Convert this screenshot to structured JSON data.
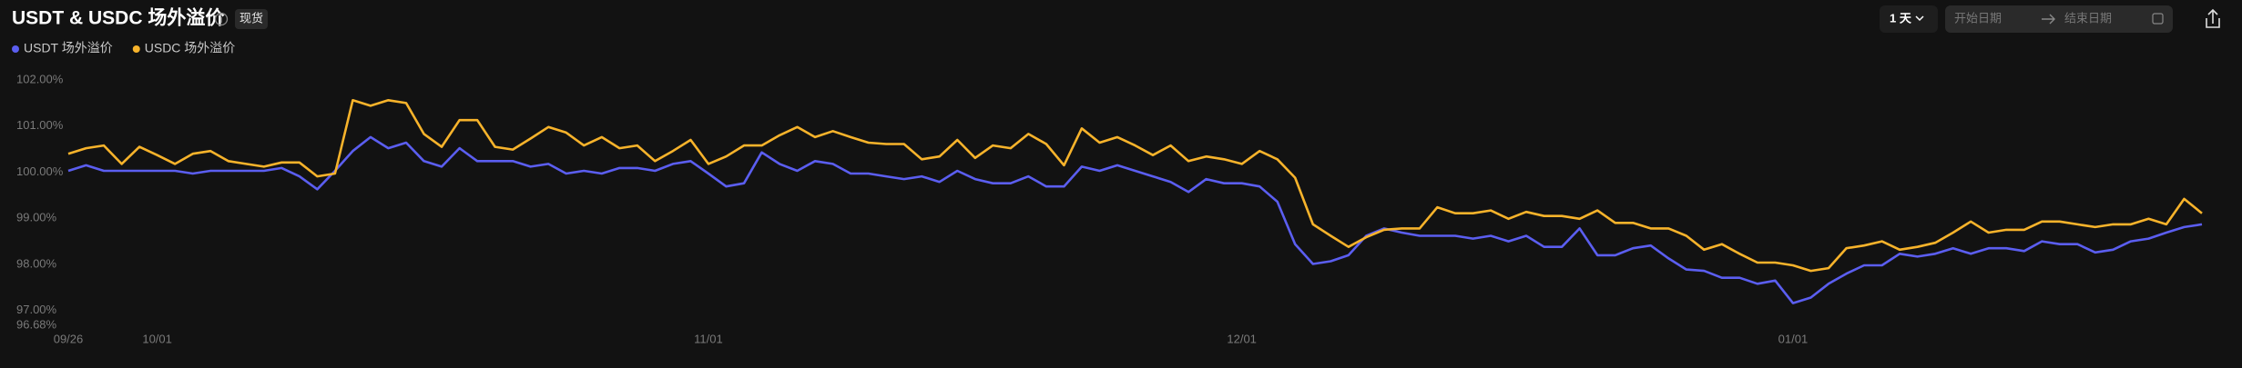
{
  "toolbar": {
    "badge": "现货",
    "interval": "1 天",
    "start_placeholder": "开始日期",
    "end_placeholder": "结束日期"
  },
  "chart_data": {
    "type": "line",
    "title": "USDT & USDC 场外溢价",
    "categories": [
      "09/26",
      null,
      null,
      null,
      null,
      "10/01",
      null,
      null,
      null,
      null,
      null,
      null,
      null,
      null,
      null,
      null,
      null,
      null,
      null,
      null,
      null,
      null,
      null,
      null,
      null,
      null,
      null,
      null,
      null,
      null,
      null,
      null,
      null,
      null,
      null,
      null,
      "11/01",
      null,
      null,
      null,
      null,
      null,
      null,
      null,
      null,
      null,
      null,
      null,
      null,
      null,
      null,
      null,
      null,
      null,
      null,
      null,
      null,
      null,
      null,
      null,
      null,
      null,
      null,
      null,
      null,
      null,
      "12/01",
      null,
      null,
      null,
      null,
      null,
      null,
      null,
      null,
      null,
      null,
      null,
      null,
      null,
      null,
      null,
      null,
      null,
      null,
      null,
      null,
      null,
      null,
      null,
      null,
      null,
      null,
      null,
      null,
      null,
      null,
      "01/01",
      null,
      null,
      null,
      null,
      null,
      null,
      null,
      null,
      null,
      null,
      null,
      null,
      null,
      null,
      null,
      null,
      null,
      null,
      null,
      null,
      null,
      null,
      null
    ],
    "series": [
      {
        "name": "USDT 场外溢价",
        "color": "#5b5ef0",
        "values": [
          100.03,
          100.15,
          100.03,
          100.03,
          100.03,
          100.03,
          100.03,
          99.97,
          100.03,
          100.03,
          100.03,
          100.03,
          100.09,
          99.91,
          99.63,
          100.03,
          100.46,
          100.76,
          100.52,
          100.64,
          100.24,
          100.12,
          100.52,
          100.24,
          100.24,
          100.24,
          100.12,
          100.18,
          99.97,
          100.03,
          99.97,
          100.09,
          100.09,
          100.03,
          100.18,
          100.24,
          99.97,
          99.69,
          99.76,
          100.43,
          100.18,
          100.03,
          100.24,
          100.18,
          99.97,
          99.97,
          99.91,
          99.85,
          99.91,
          99.79,
          100.03,
          99.85,
          99.76,
          99.76,
          99.91,
          99.69,
          99.69,
          100.12,
          100.03,
          100.15,
          100.03,
          99.91,
          99.79,
          99.57,
          99.85,
          99.76,
          99.76,
          99.69,
          99.36,
          98.44,
          98.01,
          98.07,
          98.2,
          98.62,
          98.78,
          98.69,
          98.62,
          98.62,
          98.62,
          98.56,
          98.62,
          98.5,
          98.62,
          98.38,
          98.38,
          98.78,
          98.2,
          98.2,
          98.35,
          98.41,
          98.13,
          97.89,
          97.86,
          97.71,
          97.71,
          97.58,
          97.65,
          97.16,
          97.28,
          97.58,
          97.8,
          97.98,
          97.98,
          98.23,
          98.17,
          98.23,
          98.35,
          98.23,
          98.35,
          98.35,
          98.29,
          98.5,
          98.44,
          98.44,
          98.26,
          98.32,
          98.5,
          98.56,
          98.69,
          98.81,
          98.87
        ]
      },
      {
        "name": "USDC 场外溢价",
        "color": "#f7b32b",
        "values": [
          100.4,
          100.52,
          100.58,
          100.18,
          100.55,
          100.37,
          100.18,
          100.4,
          100.46,
          100.24,
          100.18,
          100.12,
          100.21,
          100.21,
          99.91,
          99.97,
          101.56,
          101.44,
          101.56,
          101.5,
          100.83,
          100.55,
          101.13,
          101.13,
          100.55,
          100.49,
          100.73,
          100.98,
          100.86,
          100.58,
          100.76,
          100.52,
          100.58,
          100.24,
          100.46,
          100.7,
          100.18,
          100.34,
          100.58,
          100.58,
          100.8,
          100.98,
          100.76,
          100.89,
          100.76,
          100.64,
          100.61,
          100.61,
          100.28,
          100.34,
          100.7,
          100.31,
          100.58,
          100.52,
          100.83,
          100.61,
          100.15,
          100.95,
          100.64,
          100.76,
          100.58,
          100.37,
          100.58,
          100.24,
          100.34,
          100.28,
          100.18,
          100.46,
          100.28,
          99.88,
          98.87,
          98.62,
          98.38,
          98.59,
          98.75,
          98.78,
          98.78,
          99.24,
          99.11,
          99.11,
          99.17,
          98.99,
          99.14,
          99.05,
          99.05,
          98.99,
          99.17,
          98.9,
          98.9,
          98.78,
          98.78,
          98.62,
          98.32,
          98.44,
          98.23,
          98.04,
          98.04,
          97.98,
          97.86,
          97.92,
          98.35,
          98.41,
          98.5,
          98.32,
          98.38,
          98.47,
          98.69,
          98.93,
          98.69,
          98.75,
          98.75,
          98.93,
          98.93,
          98.87,
          98.81,
          98.87,
          98.87,
          98.99,
          98.87,
          99.42,
          99.11
        ]
      }
    ],
    "ylim": [
      96.68,
      102
    ],
    "yticks": [
      {
        "value": 96.68,
        "label": "96.68%"
      },
      {
        "value": 97,
        "label": "97.00%"
      },
      {
        "value": 98,
        "label": "98.00%"
      },
      {
        "value": 99,
        "label": "99.00%"
      },
      {
        "value": 100,
        "label": "100.00%"
      },
      {
        "value": 101,
        "label": "101.00%"
      },
      {
        "value": 102,
        "label": "102.00%"
      }
    ],
    "grid": false
  }
}
